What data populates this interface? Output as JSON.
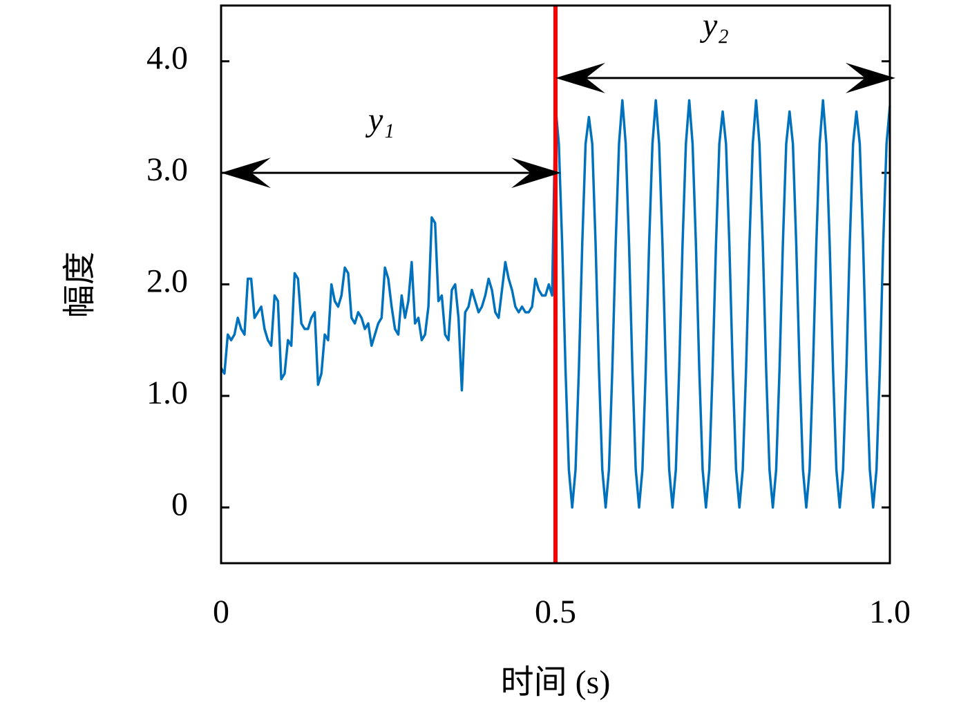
{
  "chart_data": {
    "type": "line",
    "xlabel": "时间 (s)",
    "ylabel": "幅度",
    "xlim": [
      0,
      1
    ],
    "xticks": [
      0,
      0.5,
      {
        "value": 1,
        "label": "1.0"
      }
    ],
    "ylim": [
      -0.5,
      4.5
    ],
    "yticks": [
      0,
      {
        "value": 1,
        "label": "1.0"
      },
      {
        "value": 2,
        "label": "2.0"
      },
      {
        "value": 3,
        "label": "3.0"
      },
      {
        "value": 4,
        "label": "4.0"
      }
    ],
    "color": "#0072bd",
    "vline": {
      "x": 0.5,
      "color": "#ff0000"
    },
    "annotations": [
      {
        "text": "y₁",
        "x": [
          0,
          0.5
        ],
        "y": 3.0
      },
      {
        "text": "y₂",
        "x": [
          0.5,
          1.0
        ],
        "y": 3.85
      }
    ],
    "x": [
      0,
      0.005,
      0.01,
      0.015,
      0.02,
      0.025,
      0.03,
      0.035,
      0.04,
      0.045,
      0.05,
      0.055,
      0.06,
      0.065,
      0.07,
      0.075,
      0.08,
      0.085,
      0.09,
      0.095,
      0.1,
      0.105,
      0.11,
      0.115,
      0.12,
      0.125,
      0.13,
      0.135,
      0.14,
      0.145,
      0.15,
      0.155,
      0.16,
      0.165,
      0.17,
      0.175,
      0.18,
      0.185,
      0.19,
      0.195,
      0.2,
      0.205,
      0.21,
      0.215,
      0.22,
      0.225,
      0.23,
      0.235,
      0.24,
      0.245,
      0.25,
      0.255,
      0.26,
      0.265,
      0.27,
      0.275,
      0.28,
      0.285,
      0.29,
      0.295,
      0.3,
      0.305,
      0.31,
      0.315,
      0.32,
      0.325,
      0.33,
      0.335,
      0.34,
      0.345,
      0.35,
      0.355,
      0.36,
      0.365,
      0.37,
      0.375,
      0.38,
      0.385,
      0.39,
      0.395,
      0.4,
      0.405,
      0.41,
      0.415,
      0.42,
      0.425,
      0.43,
      0.435,
      0.44,
      0.445,
      0.45,
      0.455,
      0.46,
      0.465,
      0.47,
      0.475,
      0.48,
      0.485,
      0.49,
      0.495,
      0.5,
      0.505,
      0.51,
      0.515,
      0.52,
      0.525,
      0.53,
      0.535,
      0.54,
      0.545,
      0.55,
      0.555,
      0.56,
      0.565,
      0.57,
      0.575,
      0.58,
      0.585,
      0.59,
      0.595,
      0.6,
      0.605,
      0.61,
      0.615,
      0.62,
      0.625,
      0.63,
      0.635,
      0.64,
      0.645,
      0.65,
      0.655,
      0.66,
      0.665,
      0.67,
      0.675,
      0.68,
      0.685,
      0.69,
      0.695,
      0.7,
      0.705,
      0.71,
      0.715,
      0.72,
      0.725,
      0.73,
      0.735,
      0.74,
      0.745,
      0.75,
      0.755,
      0.76,
      0.765,
      0.77,
      0.775,
      0.78,
      0.785,
      0.79,
      0.795,
      0.8,
      0.805,
      0.81,
      0.815,
      0.82,
      0.825,
      0.83,
      0.835,
      0.84,
      0.845,
      0.85,
      0.855,
      0.86,
      0.865,
      0.87,
      0.875,
      0.88,
      0.885,
      0.89,
      0.895,
      0.9,
      0.905,
      0.91,
      0.915,
      0.92,
      0.925,
      0.93,
      0.935,
      0.94,
      0.945,
      0.95,
      0.955,
      0.96,
      0.965,
      0.97,
      0.975,
      0.98,
      0.985,
      0.99,
      0.995,
      1.0
    ],
    "values": [
      1.25,
      1.2,
      1.55,
      1.5,
      1.55,
      1.7,
      1.6,
      1.55,
      2.05,
      2.05,
      1.7,
      1.75,
      1.8,
      1.6,
      1.5,
      1.45,
      1.9,
      1.85,
      1.15,
      1.2,
      1.5,
      1.45,
      2.1,
      2.05,
      1.65,
      1.6,
      1.6,
      1.7,
      1.75,
      1.1,
      1.2,
      1.55,
      1.5,
      2.0,
      1.85,
      1.8,
      1.9,
      2.15,
      2.1,
      1.7,
      1.65,
      1.75,
      1.7,
      1.6,
      1.65,
      1.45,
      1.55,
      1.65,
      1.7,
      2.15,
      2.05,
      1.8,
      1.6,
      1.55,
      1.9,
      1.7,
      1.85,
      2.2,
      1.65,
      1.7,
      1.5,
      1.55,
      1.8,
      2.6,
      2.55,
      1.85,
      1.9,
      1.55,
      1.5,
      1.95,
      2.0,
      1.7,
      1.05,
      1.75,
      1.8,
      1.95,
      1.85,
      1.75,
      1.8,
      1.9,
      2.05,
      1.95,
      1.75,
      1.7,
      1.95,
      2.2,
      2.05,
      1.95,
      1.8,
      1.75,
      1.8,
      1.75,
      1.75,
      1.8,
      2.05,
      1.95,
      1.9,
      1.9,
      2.0,
      1.9,
      3.6,
      3.26,
      2.36,
      1.24,
      0.34,
      0,
      0.34,
      1.24,
      2.36,
      3.26,
      3.5,
      3.26,
      2.36,
      1.24,
      0.34,
      0,
      0.34,
      1.24,
      2.36,
      3.26,
      3.65,
      3.26,
      2.36,
      1.24,
      0.34,
      0,
      0.34,
      1.24,
      2.36,
      3.26,
      3.65,
      3.26,
      2.36,
      1.24,
      0.34,
      0,
      0.34,
      1.24,
      2.36,
      3.26,
      3.65,
      3.26,
      2.36,
      1.24,
      0.34,
      0,
      0.34,
      1.24,
      2.36,
      3.26,
      3.55,
      3.26,
      2.36,
      1.24,
      0.34,
      0,
      0.34,
      1.24,
      2.36,
      3.26,
      3.65,
      3.26,
      2.36,
      1.24,
      0.34,
      0,
      0.34,
      1.24,
      2.36,
      3.26,
      3.55,
      3.26,
      2.36,
      1.24,
      0.34,
      0,
      0.34,
      1.24,
      2.36,
      3.26,
      3.65,
      3.26,
      2.36,
      1.24,
      0.34,
      0,
      0.34,
      1.24,
      2.36,
      3.26,
      3.55,
      3.26,
      2.36,
      1.24,
      0.34,
      0,
      0.34,
      1.24,
      2.36,
      3.26,
      3.6
    ]
  }
}
